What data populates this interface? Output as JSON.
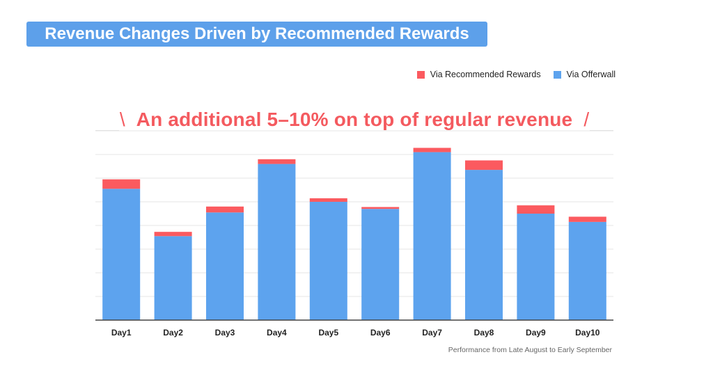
{
  "title": "Revenue Changes Driven by Recommended Rewards",
  "legend": {
    "recommended": "Via Recommended Rewards",
    "offerwall": "Via Offerwall"
  },
  "callout": {
    "left_mark": "\\",
    "text": "An additional 5–10% on top of regular revenue",
    "right_mark": "/"
  },
  "caption": "Performance from Late August to Early September",
  "colors": {
    "recommended": "#fb5a5f",
    "offerwall": "#5da3ee",
    "grid": "#e6e6e6",
    "axis": "#444444",
    "title_bg": "#5da0ea"
  },
  "chart_data": {
    "type": "bar",
    "stacked": true,
    "categories": [
      "Day1",
      "Day2",
      "Day3",
      "Day4",
      "Day5",
      "Day6",
      "Day7",
      "Day8",
      "Day9",
      "Day10"
    ],
    "series": [
      {
        "name": "Via Offerwall",
        "values": [
          5.55,
          3.55,
          4.55,
          6.6,
          5.0,
          4.7,
          7.1,
          6.35,
          4.5,
          4.15
        ]
      },
      {
        "name": "Via Recommended Rewards",
        "values": [
          0.4,
          0.18,
          0.25,
          0.2,
          0.15,
          0.08,
          0.18,
          0.4,
          0.35,
          0.22
        ]
      }
    ],
    "ylim": [
      0,
      8
    ],
    "grid": true,
    "legend": "top-right",
    "show_y_ticks": false
  }
}
